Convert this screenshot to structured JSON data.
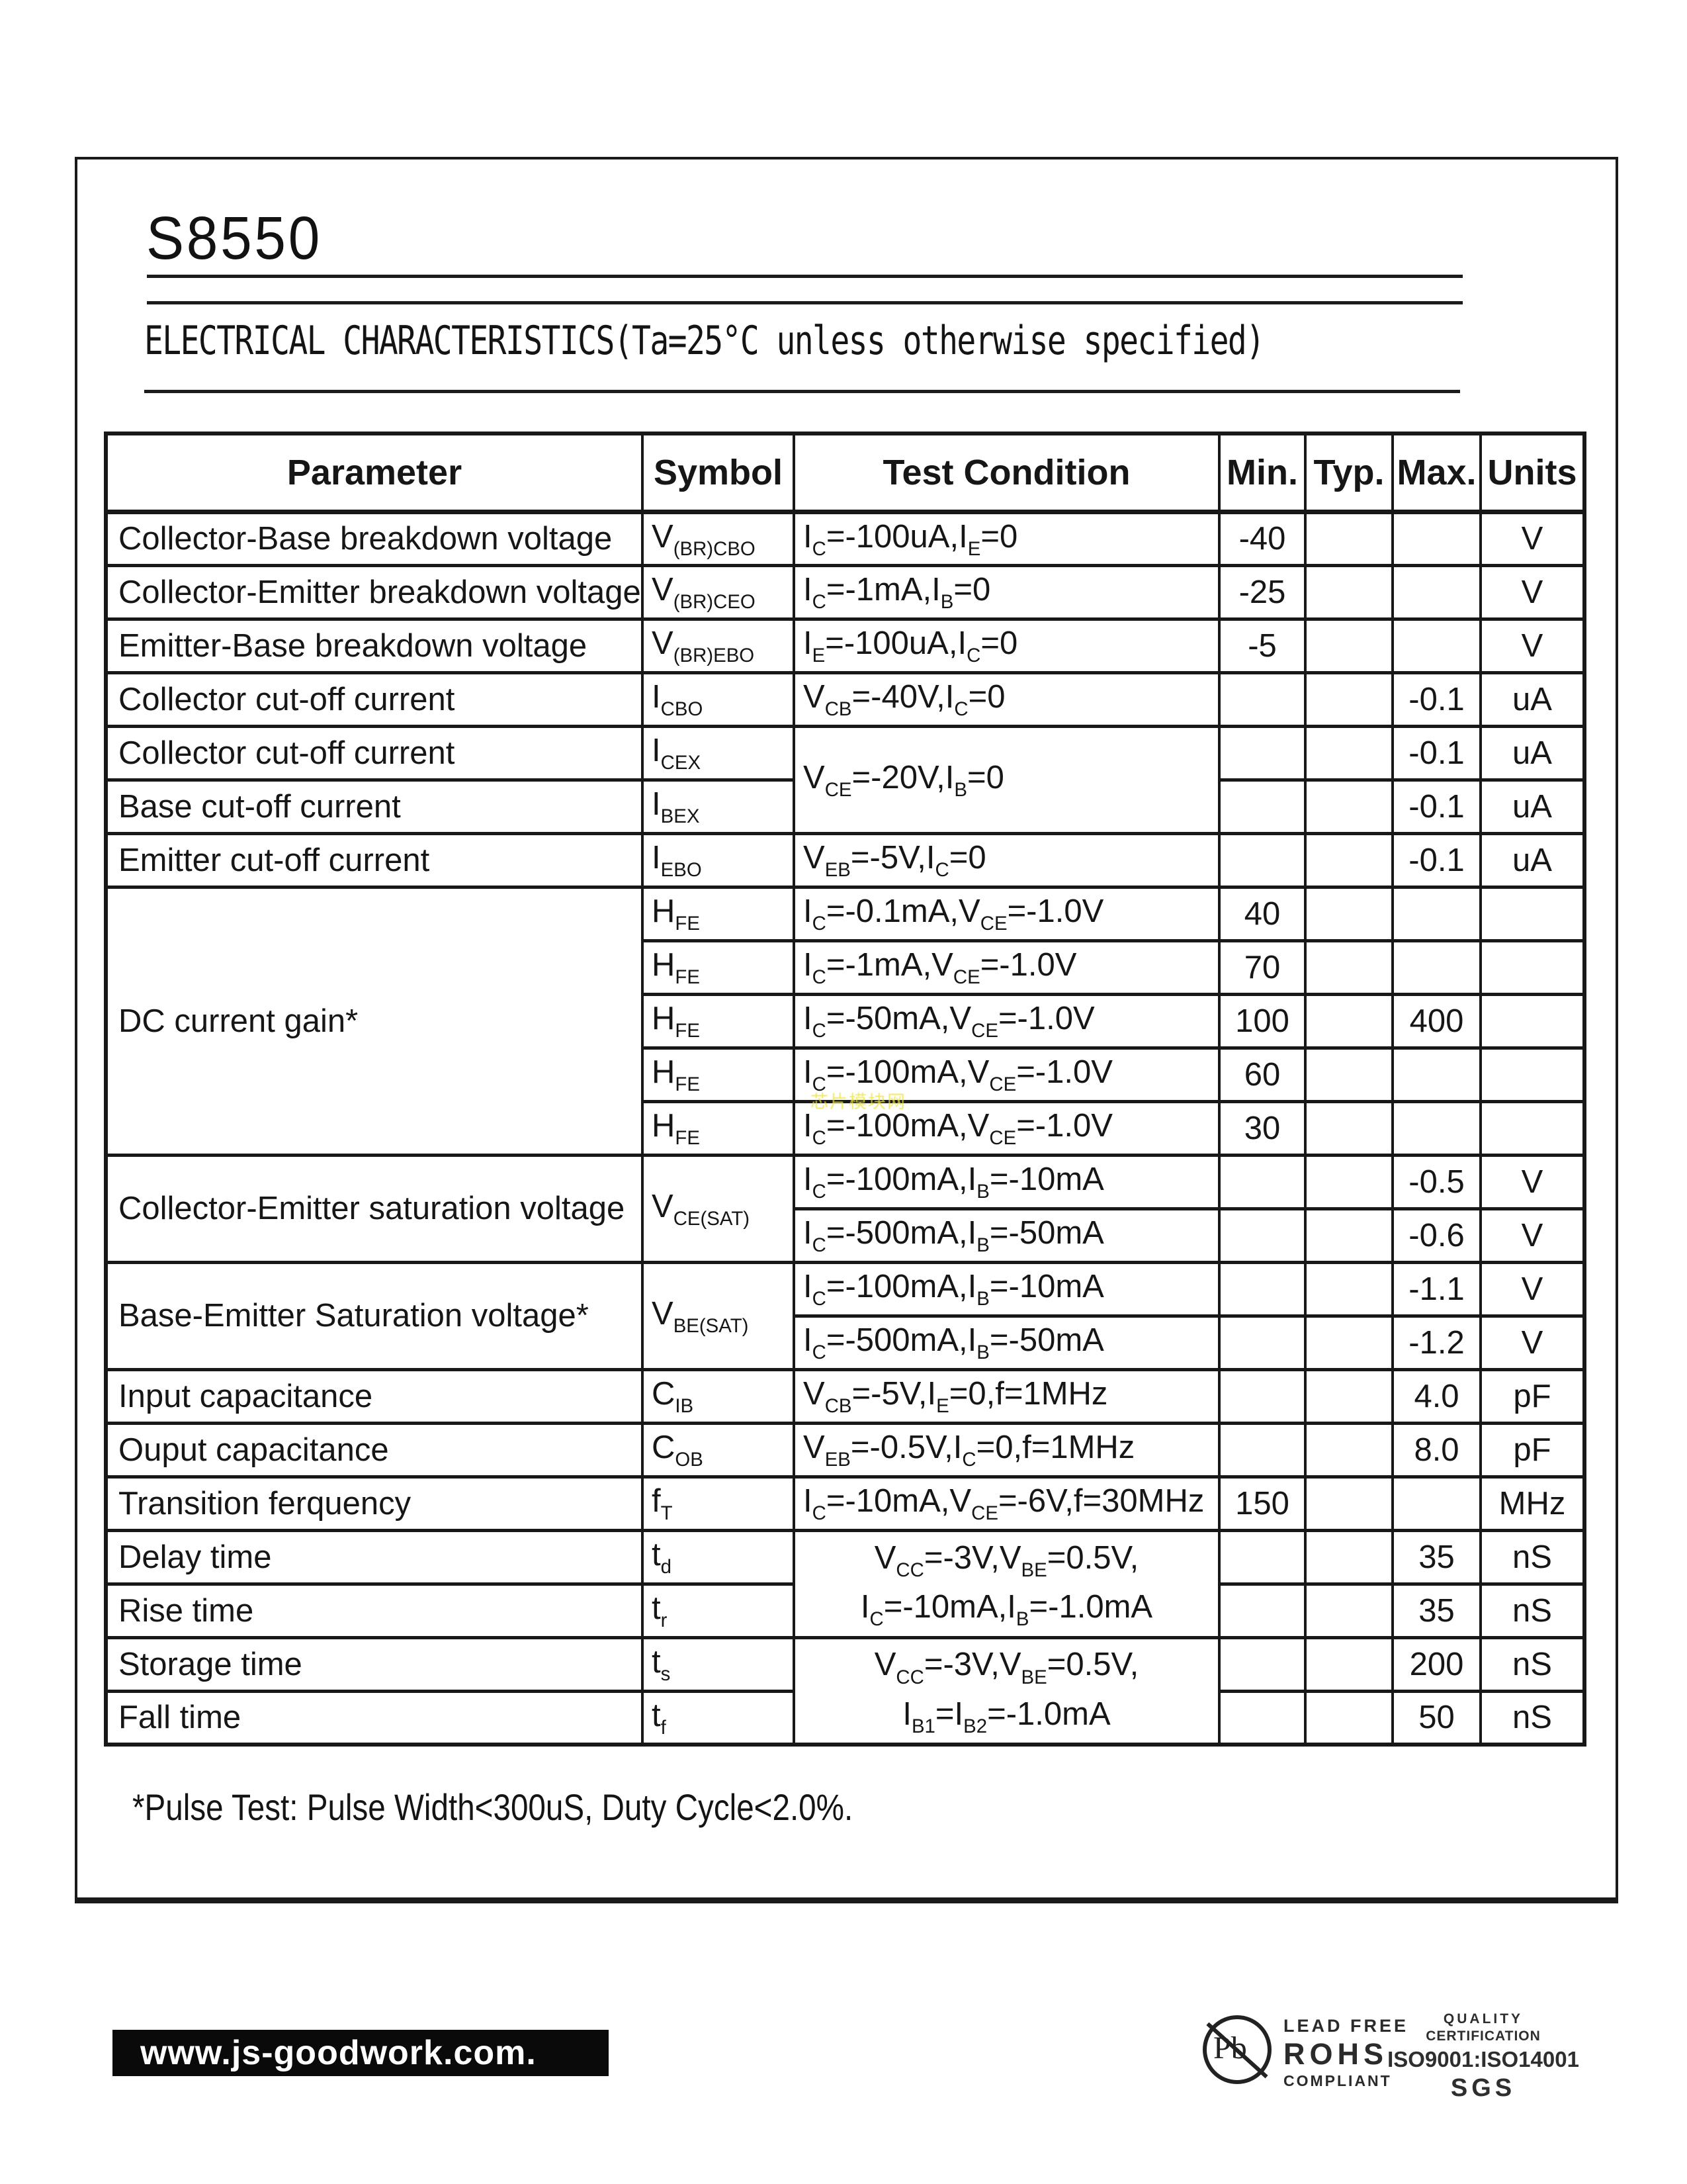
{
  "header": {
    "part_number": "S8550",
    "section_title": "ELECTRICAL CHARACTERISTICS(Ta=25°C unless otherwise specified)"
  },
  "table": {
    "headers": [
      "Parameter",
      "Symbol",
      "Test Condition",
      "Min.",
      "Typ.",
      "Max.",
      "Units"
    ],
    "rows": [
      {
        "cells": [
          {
            "t": "Collector-Base breakdown voltage",
            "cls": "param"
          },
          {
            "t": "V_{(BR)CBO}",
            "cls": "sym"
          },
          {
            "t": "I_{C}=-100uA,I_{E}=0",
            "cls": "cond"
          },
          {
            "t": "-40",
            "cls": "num"
          },
          {
            "t": "",
            "cls": "num"
          },
          {
            "t": "",
            "cls": "num"
          },
          {
            "t": "V",
            "cls": "units"
          }
        ]
      },
      {
        "cells": [
          {
            "t": "Collector-Emitter breakdown voltage",
            "cls": "param"
          },
          {
            "t": "V_{(BR)CEO}",
            "cls": "sym"
          },
          {
            "t": "I_{C}=-1mA,I_{B}=0",
            "cls": "cond"
          },
          {
            "t": "-25",
            "cls": "num"
          },
          {
            "t": "",
            "cls": "num"
          },
          {
            "t": "",
            "cls": "num"
          },
          {
            "t": "V",
            "cls": "units"
          }
        ]
      },
      {
        "cells": [
          {
            "t": "Emitter-Base breakdown voltage",
            "cls": "param"
          },
          {
            "t": "V_{(BR)EBO}",
            "cls": "sym"
          },
          {
            "t": "I_{E}=-100uA,I_{C}=0",
            "cls": "cond"
          },
          {
            "t": "-5",
            "cls": "num"
          },
          {
            "t": "",
            "cls": "num"
          },
          {
            "t": "",
            "cls": "num"
          },
          {
            "t": "V",
            "cls": "units"
          }
        ]
      },
      {
        "cells": [
          {
            "t": "Collector cut-off current",
            "cls": "param"
          },
          {
            "t": "I_{CBO}",
            "cls": "sym"
          },
          {
            "t": "V_{CB}=-40V,I_{C}=0",
            "cls": "cond"
          },
          {
            "t": "",
            "cls": "num"
          },
          {
            "t": "",
            "cls": "num"
          },
          {
            "t": "-0.1",
            "cls": "num"
          },
          {
            "t": "uA",
            "cls": "units"
          }
        ]
      },
      {
        "cells": [
          {
            "t": "Collector cut-off current",
            "cls": "param"
          },
          {
            "t": "I_{CEX}",
            "cls": "sym"
          },
          {
            "t": "V_{CE}=-20V,I_{B}=0",
            "cls": "cond",
            "rs": 2
          },
          {
            "t": "",
            "cls": "num"
          },
          {
            "t": "",
            "cls": "num"
          },
          {
            "t": "-0.1",
            "cls": "num"
          },
          {
            "t": "uA",
            "cls": "units"
          }
        ]
      },
      {
        "cells": [
          {
            "t": "Base cut-off current",
            "cls": "param"
          },
          {
            "t": "I_{BEX}",
            "cls": "sym"
          },
          {
            "t": "",
            "cls": "num"
          },
          {
            "t": "",
            "cls": "num"
          },
          {
            "t": "-0.1",
            "cls": "num"
          },
          {
            "t": "uA",
            "cls": "units"
          }
        ]
      },
      {
        "cells": [
          {
            "t": "Emitter cut-off current",
            "cls": "param"
          },
          {
            "t": "I_{EBO}",
            "cls": "sym"
          },
          {
            "t": "V_{EB}=-5V,I_{C}=0",
            "cls": "cond"
          },
          {
            "t": "",
            "cls": "num"
          },
          {
            "t": "",
            "cls": "num"
          },
          {
            "t": "-0.1",
            "cls": "num"
          },
          {
            "t": "uA",
            "cls": "units"
          }
        ]
      },
      {
        "cells": [
          {
            "t": "DC current gain*",
            "cls": "param",
            "rs": 5
          },
          {
            "t": "H_{FE}",
            "cls": "sym"
          },
          {
            "t": "I_{C}=-0.1mA,V_{CE}=-1.0V",
            "cls": "cond"
          },
          {
            "t": "40",
            "cls": "num"
          },
          {
            "t": "",
            "cls": "num"
          },
          {
            "t": "",
            "cls": "num"
          },
          {
            "t": "",
            "cls": "units"
          }
        ]
      },
      {
        "cells": [
          {
            "t": "H_{FE}",
            "cls": "sym"
          },
          {
            "t": "I_{C}=-1mA,V_{CE}=-1.0V",
            "cls": "cond"
          },
          {
            "t": "70",
            "cls": "num"
          },
          {
            "t": "",
            "cls": "num"
          },
          {
            "t": "",
            "cls": "num"
          },
          {
            "t": "",
            "cls": "units"
          }
        ]
      },
      {
        "cells": [
          {
            "t": "H_{FE}",
            "cls": "sym"
          },
          {
            "t": "I_{C}=-50mA,V_{CE}=-1.0V",
            "cls": "cond"
          },
          {
            "t": "100",
            "cls": "num"
          },
          {
            "t": "",
            "cls": "num"
          },
          {
            "t": "400",
            "cls": "num"
          },
          {
            "t": "",
            "cls": "units"
          }
        ]
      },
      {
        "cells": [
          {
            "t": "H_{FE}",
            "cls": "sym"
          },
          {
            "t": "I_{C}=-100mA,V_{CE}=-1.0V",
            "cls": "cond"
          },
          {
            "t": "60",
            "cls": "num"
          },
          {
            "t": "",
            "cls": "num"
          },
          {
            "t": "",
            "cls": "num"
          },
          {
            "t": "",
            "cls": "units"
          }
        ]
      },
      {
        "cells": [
          {
            "t": "H_{FE}",
            "cls": "sym"
          },
          {
            "t": "I_{C}=-100mA,V_{CE}=-1.0V",
            "cls": "cond"
          },
          {
            "t": "30",
            "cls": "num"
          },
          {
            "t": "",
            "cls": "num"
          },
          {
            "t": "",
            "cls": "num"
          },
          {
            "t": "",
            "cls": "units"
          }
        ]
      },
      {
        "cells": [
          {
            "t": "Collector-Emitter saturation voltage",
            "cls": "param",
            "rs": 2
          },
          {
            "t": "V_{CE(SAT)}",
            "cls": "sym",
            "rs": 2
          },
          {
            "t": "I_{C}=-100mA,I_{B}=-10mA",
            "cls": "cond"
          },
          {
            "t": "",
            "cls": "num"
          },
          {
            "t": "",
            "cls": "num"
          },
          {
            "t": "-0.5",
            "cls": "num"
          },
          {
            "t": "V",
            "cls": "units"
          }
        ]
      },
      {
        "cells": [
          {
            "t": "I_{C}=-500mA,I_{B}=-50mA",
            "cls": "cond"
          },
          {
            "t": "",
            "cls": "num"
          },
          {
            "t": "",
            "cls": "num"
          },
          {
            "t": "-0.6",
            "cls": "num"
          },
          {
            "t": "V",
            "cls": "units"
          }
        ]
      },
      {
        "cells": [
          {
            "t": "Base-Emitter Saturation voltage*",
            "cls": "param",
            "rs": 2
          },
          {
            "t": "V_{BE(SAT)}",
            "cls": "sym",
            "rs": 2
          },
          {
            "t": "I_{C}=-100mA,I_{B}=-10mA",
            "cls": "cond"
          },
          {
            "t": "",
            "cls": "num"
          },
          {
            "t": "",
            "cls": "num"
          },
          {
            "t": "-1.1",
            "cls": "num"
          },
          {
            "t": "V",
            "cls": "units"
          }
        ]
      },
      {
        "cells": [
          {
            "t": "I_{C}=-500mA,I_{B}=-50mA",
            "cls": "cond"
          },
          {
            "t": "",
            "cls": "num"
          },
          {
            "t": "",
            "cls": "num"
          },
          {
            "t": "-1.2",
            "cls": "num"
          },
          {
            "t": "V",
            "cls": "units"
          }
        ]
      },
      {
        "cells": [
          {
            "t": "Input capacitance",
            "cls": "param"
          },
          {
            "t": "C_{IB}",
            "cls": "sym"
          },
          {
            "t": "V_{CB}=-5V,I_{E}=0,f=1MHz",
            "cls": "cond"
          },
          {
            "t": "",
            "cls": "num"
          },
          {
            "t": "",
            "cls": "num"
          },
          {
            "t": "4.0",
            "cls": "num"
          },
          {
            "t": "pF",
            "cls": "units"
          }
        ]
      },
      {
        "cells": [
          {
            "t": "Ouput capacitance",
            "cls": "param"
          },
          {
            "t": "C_{OB}",
            "cls": "sym"
          },
          {
            "t": "V_{EB}=-0.5V,I_{C}=0,f=1MHz",
            "cls": "cond"
          },
          {
            "t": "",
            "cls": "num"
          },
          {
            "t": "",
            "cls": "num"
          },
          {
            "t": "8.0",
            "cls": "num"
          },
          {
            "t": "pF",
            "cls": "units"
          }
        ]
      },
      {
        "cells": [
          {
            "t": "Transition ferquency",
            "cls": "param"
          },
          {
            "t": "f_{T}",
            "cls": "sym"
          },
          {
            "t": "I_{C}=-10mA,V_{CE}=-6V,f=30MHz",
            "cls": "cond"
          },
          {
            "t": "150",
            "cls": "num"
          },
          {
            "t": "",
            "cls": "num"
          },
          {
            "t": "",
            "cls": "num"
          },
          {
            "t": "MHz",
            "cls": "units"
          }
        ]
      },
      {
        "cells": [
          {
            "t": "Delay time",
            "cls": "param"
          },
          {
            "t": "t_{d}",
            "cls": "sym"
          },
          {
            "t": "V_{CC}=-3V,V_{BE}=0.5V,\nI_{C}=-10mA,I_{B}=-1.0mA",
            "cls": "condc",
            "rs": 2
          },
          {
            "t": "",
            "cls": "num"
          },
          {
            "t": "",
            "cls": "num"
          },
          {
            "t": "35",
            "cls": "num"
          },
          {
            "t": "nS",
            "cls": "units"
          }
        ]
      },
      {
        "cells": [
          {
            "t": "Rise time",
            "cls": "param"
          },
          {
            "t": "t_{r}",
            "cls": "sym"
          },
          {
            "t": "",
            "cls": "num"
          },
          {
            "t": "",
            "cls": "num"
          },
          {
            "t": "35",
            "cls": "num"
          },
          {
            "t": "nS",
            "cls": "units"
          }
        ]
      },
      {
        "cells": [
          {
            "t": "Storage time",
            "cls": "param"
          },
          {
            "t": "t_{s}",
            "cls": "sym"
          },
          {
            "t": "V_{CC}=-3V,V_{BE}=0.5V,\nI_{B1}=I_{B2}=-1.0mA",
            "cls": "condc",
            "rs": 2
          },
          {
            "t": "",
            "cls": "num"
          },
          {
            "t": "",
            "cls": "num"
          },
          {
            "t": "200",
            "cls": "num"
          },
          {
            "t": "nS",
            "cls": "units"
          }
        ]
      },
      {
        "cells": [
          {
            "t": "Fall time",
            "cls": "param"
          },
          {
            "t": "t_{f}",
            "cls": "sym"
          },
          {
            "t": "",
            "cls": "num"
          },
          {
            "t": "",
            "cls": "num"
          },
          {
            "t": "50",
            "cls": "num"
          },
          {
            "t": "nS",
            "cls": "units"
          }
        ]
      }
    ]
  },
  "footnote": "*Pulse Test: Pulse Width<300uS, Duty Cycle<2.0%.",
  "watermark": {
    "text": "芯片模块网",
    "color": "#ece542"
  },
  "footer": {
    "website": "www.js-goodwork.com.",
    "lead_free": {
      "symbol": "Pb",
      "line1": "LEAD FREE",
      "line2": "ROHS",
      "line3": "COMPLIANT"
    },
    "certification": {
      "line1": "QUALITY",
      "line2": "CERTIFICATION",
      "line3": "ISO9001:ISO14001",
      "line4": "SGS"
    }
  }
}
